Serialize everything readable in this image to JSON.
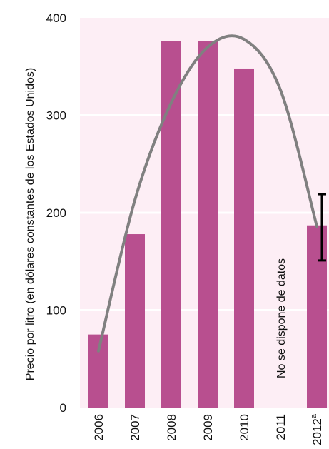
{
  "chart_data": {
    "type": "bar",
    "categories": [
      "2006",
      "2007",
      "2008",
      "2009",
      "2010",
      "2011",
      "2012"
    ],
    "category_superscripts": [
      "",
      "",
      "",
      "",
      "",
      "",
      "a"
    ],
    "values": [
      75,
      178,
      376,
      376,
      348,
      null,
      187
    ],
    "ylabel": "Precio por litro (en dólares constantes de los Estados Unidos)",
    "ylim": [
      0,
      400
    ],
    "yticks": [
      0,
      100,
      200,
      300,
      400
    ],
    "grid": true,
    "error_bar": {
      "category": "2012",
      "low": 151,
      "high": 219
    },
    "trend_line": {
      "type": "polynomial",
      "x": [
        2006,
        2007,
        2008,
        2009,
        2010,
        2011,
        2012
      ],
      "values": [
        58,
        213,
        313,
        370,
        378,
        326,
        186
      ]
    },
    "annotations": [
      {
        "category": "2011",
        "text": "No se dispone de datos"
      }
    ],
    "colors": {
      "bar": "#b84f8f",
      "plot_background": "#fdeef5",
      "grid": "#ffffff",
      "trend_line": "#808080",
      "error_bar": "#000000"
    }
  }
}
